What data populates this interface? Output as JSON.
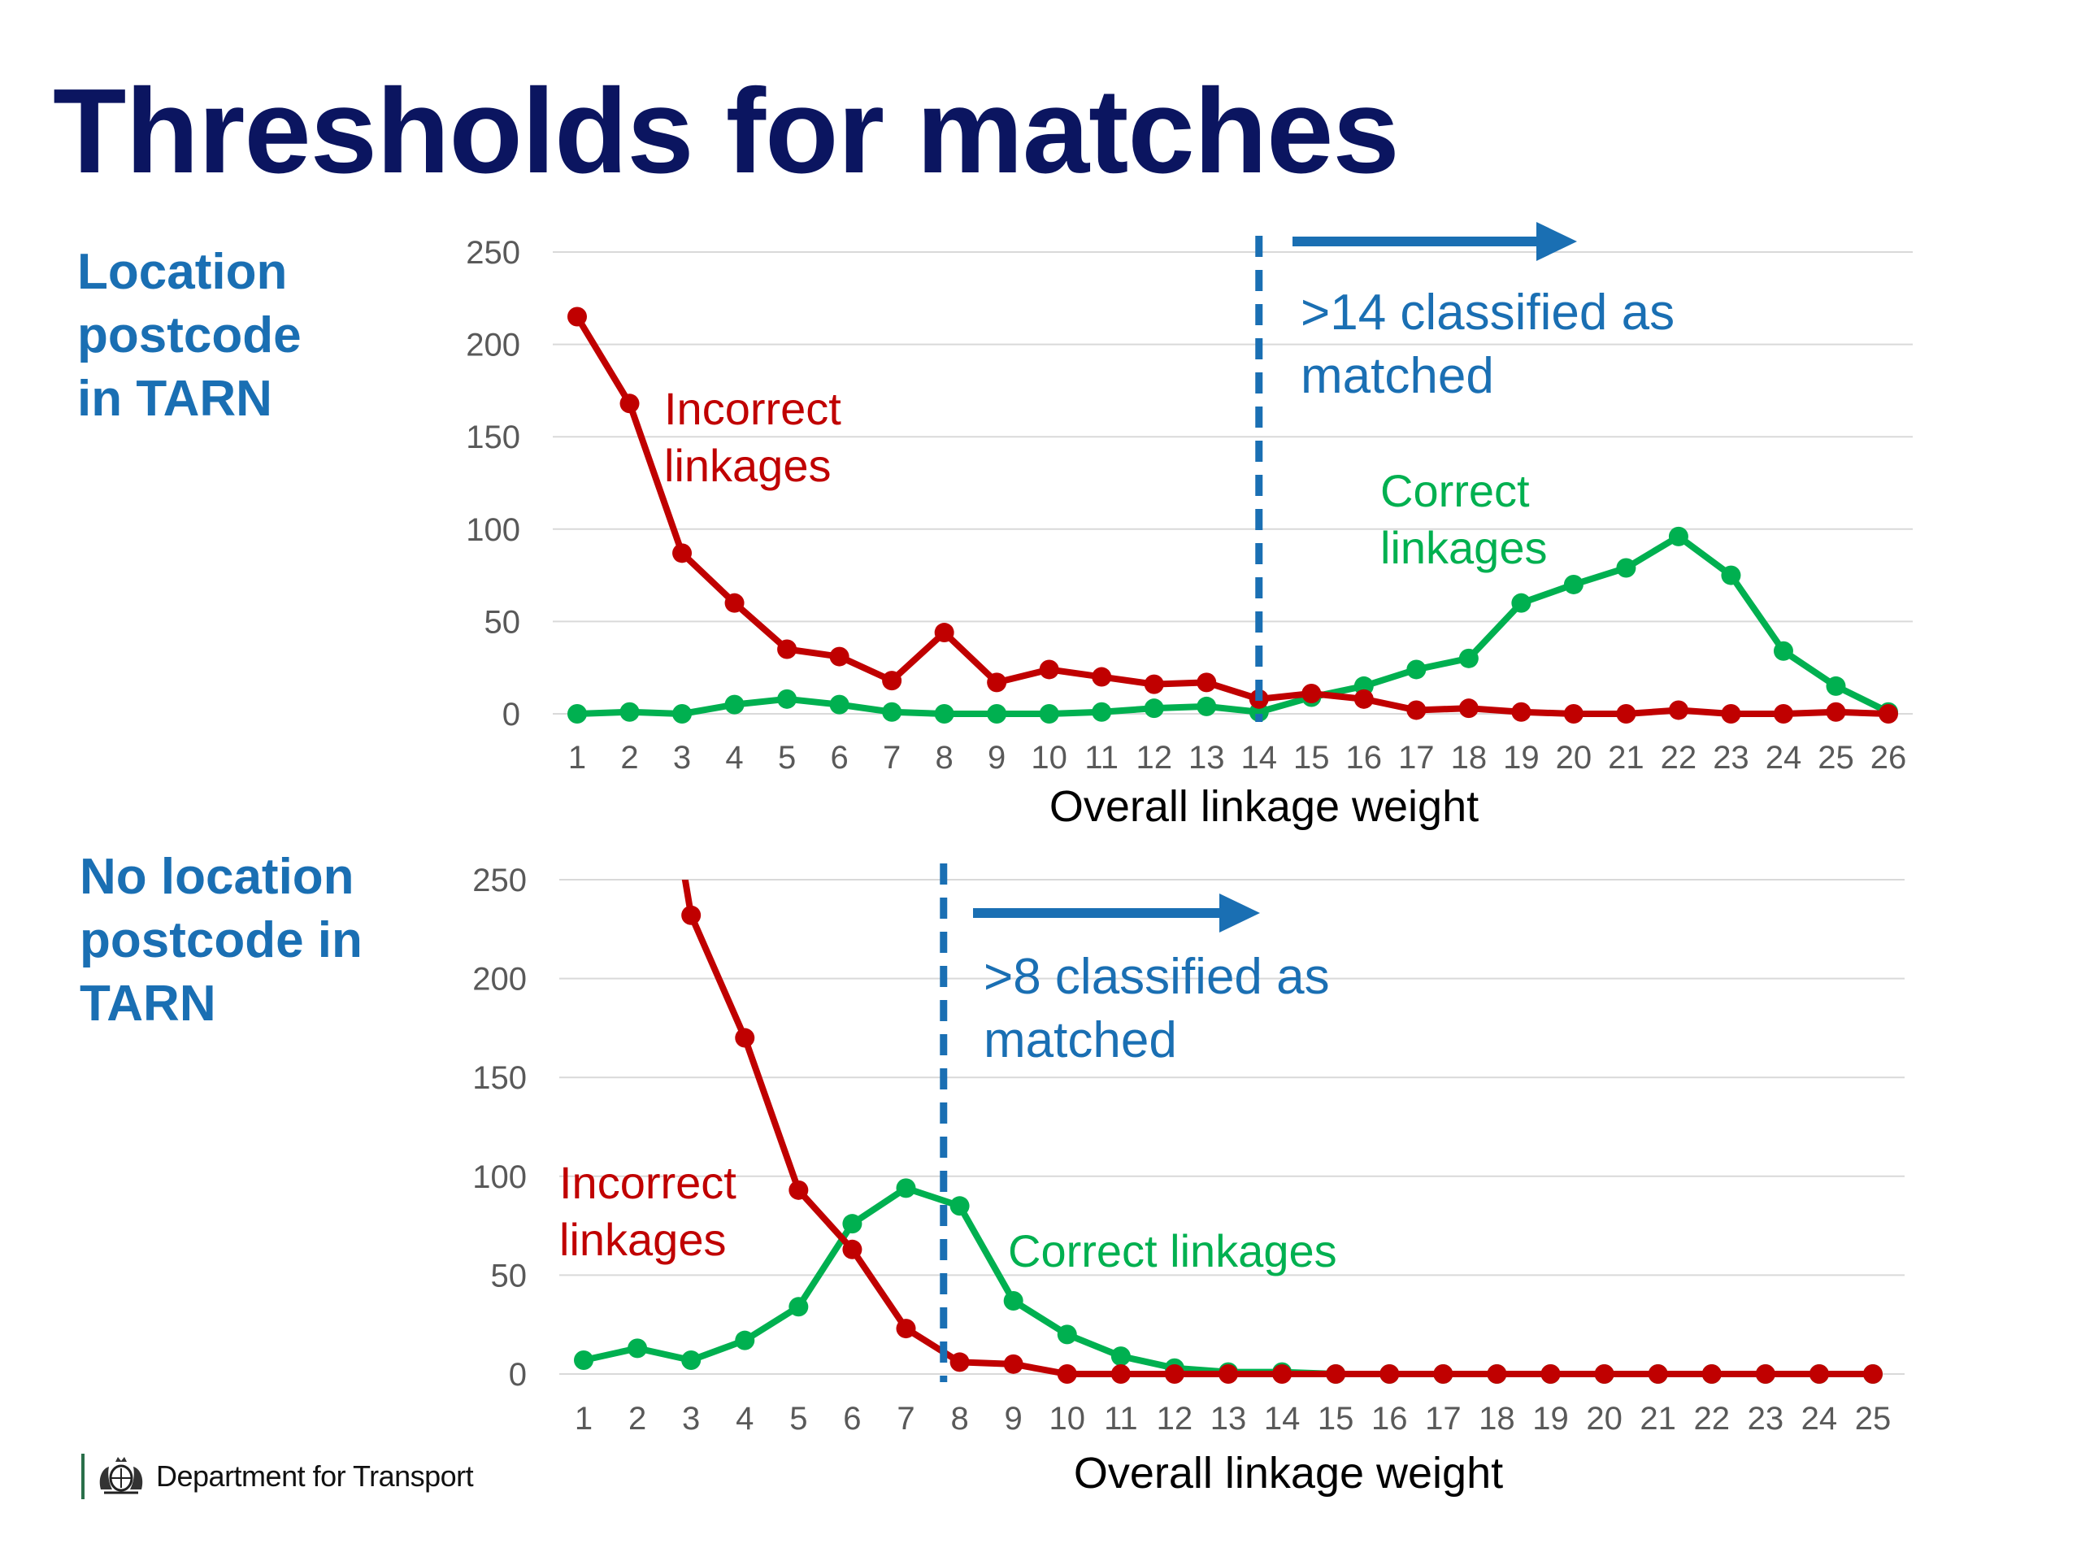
{
  "title": "Thresholds for matches",
  "footer": {
    "department": "Department for Transport",
    "icon": "royal-crest-icon"
  },
  "colors": {
    "title": "#0b1560",
    "label": "#1a6fb3",
    "incorrect": "#c00000",
    "correct": "#00b050",
    "threshold": "#1a6fb3",
    "grid": "#d9d9d9",
    "tick": "#595959"
  },
  "panels": [
    {
      "label_lines": [
        "Location",
        "postcode",
        "in TARN"
      ]
    },
    {
      "label_lines": [
        "No location",
        "postcode in",
        "TARN"
      ]
    }
  ],
  "chart_data": [
    {
      "type": "line",
      "title": "",
      "xlabel": "Overall linkage weight",
      "ylabel": "",
      "categories": [
        "1",
        "2",
        "3",
        "4",
        "5",
        "6",
        "7",
        "8",
        "9",
        "10",
        "11",
        "12",
        "13",
        "14",
        "15",
        "16",
        "17",
        "18",
        "19",
        "20",
        "21",
        "22",
        "23",
        "24",
        "25",
        "26"
      ],
      "ylim": [
        0,
        250
      ],
      "yticks": [
        0,
        50,
        100,
        150,
        200,
        250
      ],
      "grid": true,
      "series": [
        {
          "name": "Incorrect linkages",
          "label_lines": [
            "Incorrect",
            "linkages"
          ],
          "values": [
            215,
            168,
            87,
            60,
            35,
            31,
            18,
            44,
            17,
            24,
            20,
            16,
            17,
            8,
            11,
            8,
            2,
            3,
            1,
            0,
            0,
            2,
            0,
            0,
            1,
            0
          ]
        },
        {
          "name": "Correct linkages",
          "label_lines": [
            "Correct",
            "linkages"
          ],
          "values": [
            0,
            1,
            0,
            5,
            8,
            5,
            1,
            0,
            0,
            0,
            1,
            3,
            4,
            1,
            9,
            15,
            24,
            30,
            60,
            70,
            79,
            96,
            75,
            34,
            15,
            1
          ]
        }
      ],
      "threshold": {
        "x": 14,
        "annotation_lines": [
          ">14 classified as",
          "matched"
        ]
      }
    },
    {
      "type": "line",
      "title": "",
      "xlabel": "Overall linkage weight",
      "ylabel": "",
      "categories": [
        "1",
        "2",
        "3",
        "4",
        "5",
        "6",
        "7",
        "8",
        "9",
        "10",
        "11",
        "12",
        "13",
        "14",
        "15",
        "16",
        "17",
        "18",
        "19",
        "20",
        "21",
        "22",
        "23",
        "24",
        "25"
      ],
      "ylim": [
        0,
        250
      ],
      "yticks": [
        0,
        50,
        100,
        150,
        200,
        250
      ],
      "grid": true,
      "series": [
        {
          "name": "Incorrect linkages",
          "label_lines": [
            "Incorrect",
            "linkages"
          ],
          "values": [
            null,
            null,
            232,
            170,
            93,
            63,
            23,
            6,
            5,
            0,
            0,
            0,
            0,
            0,
            0,
            0,
            0,
            0,
            0,
            0,
            0,
            0,
            0,
            0,
            0
          ]
        },
        {
          "name": "Correct linkages",
          "label_lines": [
            "Correct linkages"
          ],
          "values": [
            7,
            13,
            7,
            17,
            34,
            76,
            94,
            85,
            37,
            20,
            9,
            3,
            1,
            1,
            0,
            0,
            0,
            0,
            0,
            0,
            0,
            0,
            0,
            0,
            0
          ]
        }
      ],
      "threshold": {
        "x": 7.7,
        "annotation_lines": [
          ">8 classified as",
          "matched"
        ]
      }
    }
  ]
}
